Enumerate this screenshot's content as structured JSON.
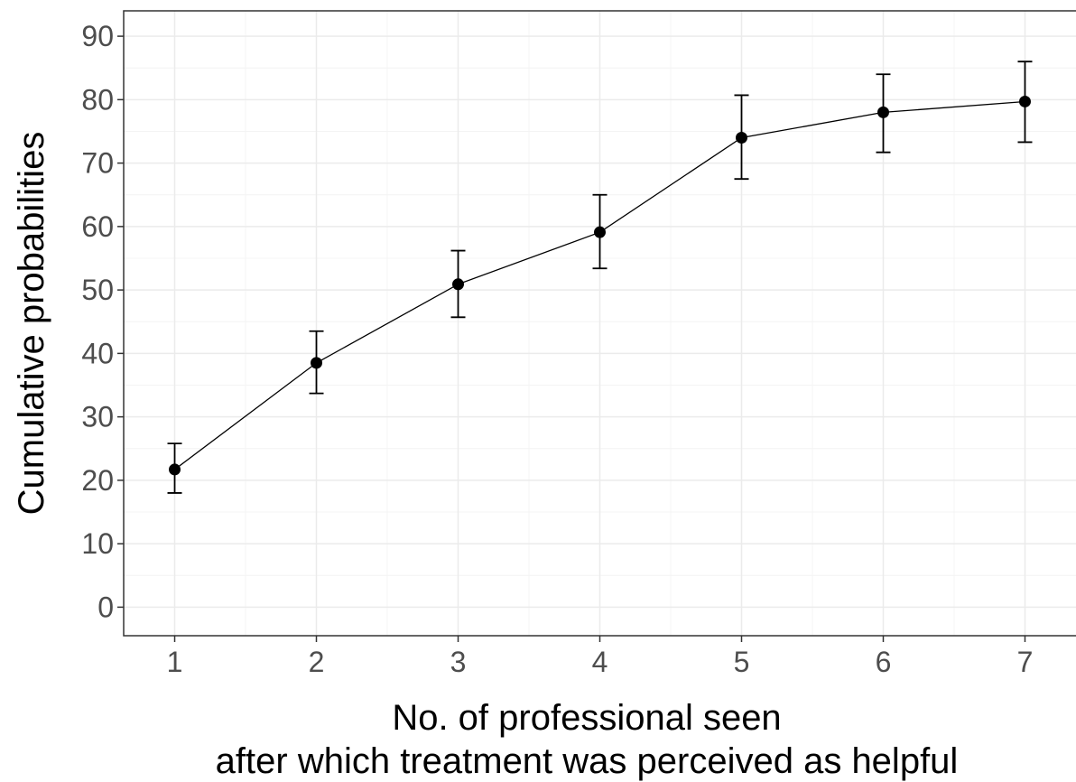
{
  "chart_data": {
    "type": "line",
    "title": "",
    "xlabel_lines": [
      "No. of professional seen",
      "after which treatment was perceived as helpful"
    ],
    "ylabel": "Cumulative probabilities",
    "x": [
      1,
      2,
      3,
      4,
      5,
      6,
      7
    ],
    "series": [
      {
        "values": [
          21.7,
          38.5,
          50.9,
          59.1,
          74.0,
          78.0,
          79.7
        ],
        "lower": [
          18.0,
          33.7,
          45.7,
          53.4,
          67.5,
          71.7,
          73.3
        ],
        "upper": [
          25.8,
          43.5,
          56.2,
          65.0,
          80.7,
          84.0,
          86.0
        ]
      }
    ],
    "x_ticks": [
      "1",
      "2",
      "3",
      "4",
      "5",
      "6",
      "7"
    ],
    "y_ticks": [
      "0",
      "10",
      "20",
      "30",
      "40",
      "50",
      "60",
      "70",
      "80",
      "90"
    ],
    "xlim": [
      0.64,
      7.36
    ],
    "ylim": [
      -4.5,
      94
    ],
    "grid": true,
    "legend": "none",
    "colors": {
      "line": "#000000",
      "point": "#000000",
      "grid": "#ebebeb",
      "panel_border": "#333333",
      "tick_text": "#4d4d4d"
    }
  }
}
